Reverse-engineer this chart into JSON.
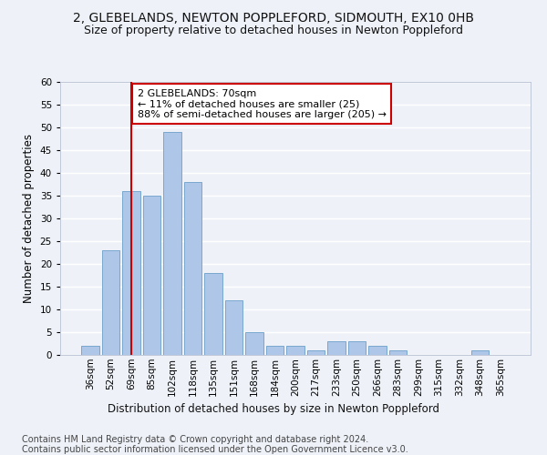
{
  "title1": "2, GLEBELANDS, NEWTON POPPLEFORD, SIDMOUTH, EX10 0HB",
  "title2": "Size of property relative to detached houses in Newton Poppleford",
  "xlabel": "Distribution of detached houses by size in Newton Poppleford",
  "ylabel": "Number of detached properties",
  "bar_labels": [
    "36sqm",
    "52sqm",
    "69sqm",
    "85sqm",
    "102sqm",
    "118sqm",
    "135sqm",
    "151sqm",
    "168sqm",
    "184sqm",
    "200sqm",
    "217sqm",
    "233sqm",
    "250sqm",
    "266sqm",
    "283sqm",
    "299sqm",
    "315sqm",
    "332sqm",
    "348sqm",
    "365sqm"
  ],
  "bar_values": [
    2,
    23,
    36,
    35,
    49,
    38,
    18,
    12,
    5,
    2,
    2,
    1,
    3,
    3,
    2,
    1,
    0,
    0,
    0,
    1,
    0
  ],
  "bar_color": "#aec6e8",
  "bar_edge_color": "#6a9fc8",
  "vline_x": 2,
  "vline_color": "#cc0000",
  "annotation_text": "2 GLEBELANDS: 70sqm\n← 11% of detached houses are smaller (25)\n88% of semi-detached houses are larger (205) →",
  "annotation_box_color": "#ffffff",
  "annotation_edge_color": "#cc0000",
  "ylim": [
    0,
    60
  ],
  "yticks": [
    0,
    5,
    10,
    15,
    20,
    25,
    30,
    35,
    40,
    45,
    50,
    55,
    60
  ],
  "footer1": "Contains HM Land Registry data © Crown copyright and database right 2024.",
  "footer2": "Contains public sector information licensed under the Open Government Licence v3.0.",
  "bg_color": "#eef2f8",
  "plot_bg_color": "#eef2f8",
  "grid_color": "#ffffff",
  "title1_fontsize": 10,
  "title2_fontsize": 9,
  "axis_label_fontsize": 8.5,
  "tick_fontsize": 7.5,
  "annotation_fontsize": 8,
  "footer_fontsize": 7
}
